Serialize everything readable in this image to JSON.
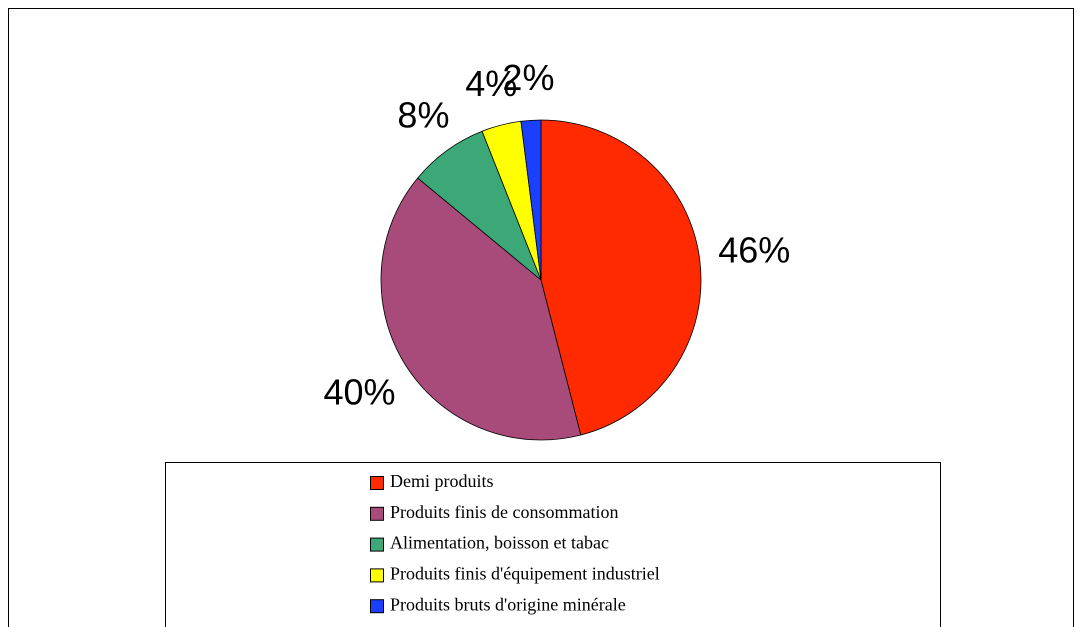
{
  "chart_data": {
    "type": "pie",
    "categories": [
      "Demi produits",
      "Produits finis de consommation",
      "Alimentation, boisson et tabac",
      "Produits finis d'équipement industriel",
      "Produits bruts d'origine minérale"
    ],
    "values": [
      46,
      40,
      8,
      4,
      2
    ],
    "value_labels": [
      "46%",
      "40%",
      "8%",
      "4%",
      "2%"
    ],
    "colors": [
      "#ff2a00",
      "#a84b7a",
      "#3ca878",
      "#ffff00",
      "#1a3fff"
    ]
  }
}
